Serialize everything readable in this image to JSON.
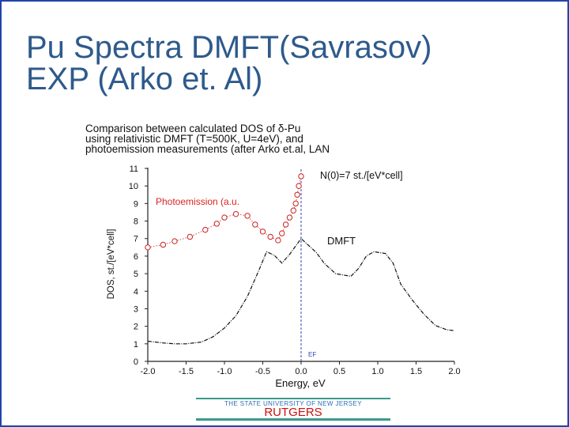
{
  "slide": {
    "title_lines": [
      "Pu Spectra DMFT(Savrasov)",
      "EXP (Arko et. Al)"
    ],
    "caption_lines": [
      "Comparison between calculated DOS of δ-Pu",
      "using relativistic DMFT (T=500K, U=4eV), and",
      "photoemission measurements (after Arko et.al, LAN"
    ],
    "footer": {
      "university": "THE STATE UNIVERSITY OF NEW JERSEY",
      "name": "RUTGERS"
    }
  },
  "chart_data": {
    "type": "line",
    "xlabel": "Energy, eV",
    "ylabel": "DOS, st./[eV*cell]",
    "xlim": [
      -2.0,
      2.0
    ],
    "ylim": [
      0,
      11
    ],
    "x_ticks": [
      "-2.0",
      "-1.5",
      "-1.0",
      "-0.5",
      "0.0",
      "0.5",
      "1.0",
      "1.5",
      "2.0"
    ],
    "y_ticks": [
      "0",
      "1",
      "2",
      "3",
      "4",
      "5",
      "6",
      "7",
      "8",
      "9",
      "10",
      "11"
    ],
    "grid": false,
    "annotations": {
      "n0": "N(0)=7 st./[eV*cell]",
      "ef": "EF"
    },
    "colors": {
      "dmft": "#111111",
      "photoemission": "#cc2222",
      "ef_line": "#3344aa",
      "photo_label": "#dd2222",
      "ef_label": "#3344aa"
    },
    "series": [
      {
        "name": "DMFT",
        "style": "line",
        "points": [
          [
            -2.0,
            1.15
          ],
          [
            -1.8,
            1.05
          ],
          [
            -1.65,
            1.0
          ],
          [
            -1.5,
            1.0
          ],
          [
            -1.3,
            1.1
          ],
          [
            -1.15,
            1.4
          ],
          [
            -1.0,
            1.9
          ],
          [
            -0.85,
            2.6
          ],
          [
            -0.7,
            3.7
          ],
          [
            -0.55,
            5.2
          ],
          [
            -0.45,
            6.25
          ],
          [
            -0.35,
            6.05
          ],
          [
            -0.25,
            5.6
          ],
          [
            -0.15,
            6.1
          ],
          [
            -0.05,
            6.7
          ],
          [
            0.0,
            7.0
          ],
          [
            0.1,
            6.6
          ],
          [
            0.2,
            6.2
          ],
          [
            0.3,
            5.6
          ],
          [
            0.45,
            5.0
          ],
          [
            0.65,
            4.85
          ],
          [
            0.75,
            5.3
          ],
          [
            0.85,
            6.0
          ],
          [
            0.95,
            6.25
          ],
          [
            1.1,
            6.15
          ],
          [
            1.2,
            5.6
          ],
          [
            1.3,
            4.4
          ],
          [
            1.45,
            3.5
          ],
          [
            1.6,
            2.7
          ],
          [
            1.75,
            2.05
          ],
          [
            1.9,
            1.8
          ],
          [
            2.0,
            1.75
          ]
        ]
      },
      {
        "name": "Photoemission (a.u.",
        "style": "markers",
        "points": [
          [
            -2.0,
            6.5
          ],
          [
            -1.8,
            6.65
          ],
          [
            -1.65,
            6.85
          ],
          [
            -1.45,
            7.1
          ],
          [
            -1.25,
            7.5
          ],
          [
            -1.1,
            7.85
          ],
          [
            -1.0,
            8.2
          ],
          [
            -0.85,
            8.4
          ],
          [
            -0.7,
            8.3
          ],
          [
            -0.6,
            7.8
          ],
          [
            -0.5,
            7.4
          ],
          [
            -0.4,
            7.1
          ],
          [
            -0.3,
            6.9
          ],
          [
            -0.25,
            7.3
          ],
          [
            -0.2,
            7.8
          ],
          [
            -0.15,
            8.2
          ],
          [
            -0.1,
            8.6
          ],
          [
            -0.07,
            9.0
          ],
          [
            -0.05,
            9.5
          ],
          [
            -0.03,
            10.0
          ],
          [
            0.0,
            10.55
          ]
        ]
      }
    ]
  }
}
